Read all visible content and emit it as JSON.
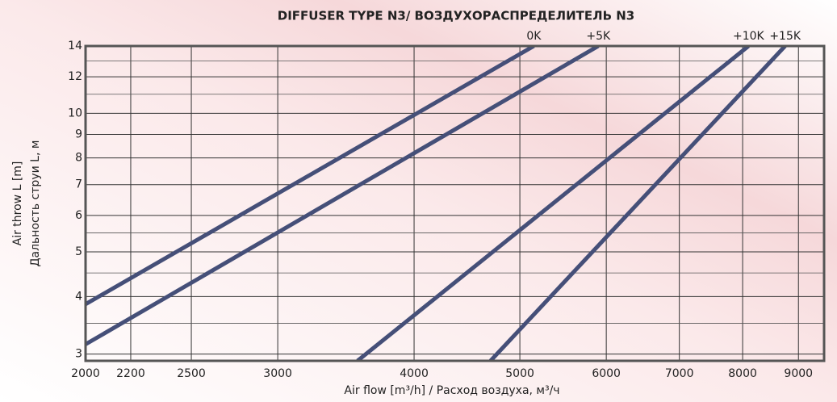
{
  "chart_data": {
    "type": "line",
    "title": "DIFFUSER TYPE N3/ ВОЗДУХОРАСПРЕДЕЛИТЕЛЬ N3",
    "xlabel": "Air flow [m³/h] / Расход воздуха, м³/ч",
    "ylabel": [
      "Air throw L [m]",
      "Дальность струи L, м"
    ],
    "xscale": "log",
    "yscale": "log",
    "grid": true,
    "xlim": [
      2000,
      9500
    ],
    "xticks": [
      2000,
      2200,
      2500,
      3000,
      4000,
      5000,
      6000,
      7000,
      8000,
      9000
    ],
    "ylim": [
      2.9,
      14
    ],
    "yticks": [
      3,
      4,
      5,
      6,
      7,
      8,
      9,
      10,
      12,
      14
    ],
    "minor_yticks": [
      3.5,
      4.5,
      5.5,
      11,
      13
    ],
    "series": [
      {
        "name": "0K",
        "color": "#454f78",
        "x": [
          2000,
          5150
        ],
        "values": [
          3.85,
          14
        ]
      },
      {
        "name": "+5K",
        "color": "#454f78",
        "x": [
          2000,
          5900
        ],
        "values": [
          3.15,
          14
        ]
      },
      {
        "name": "+10K",
        "color": "#454f78",
        "x": [
          3550,
          8100
        ],
        "values": [
          2.9,
          14
        ]
      },
      {
        "name": "+15K",
        "color": "#454f78",
        "x": [
          4700,
          8750
        ],
        "values": [
          2.9,
          14
        ]
      }
    ]
  }
}
